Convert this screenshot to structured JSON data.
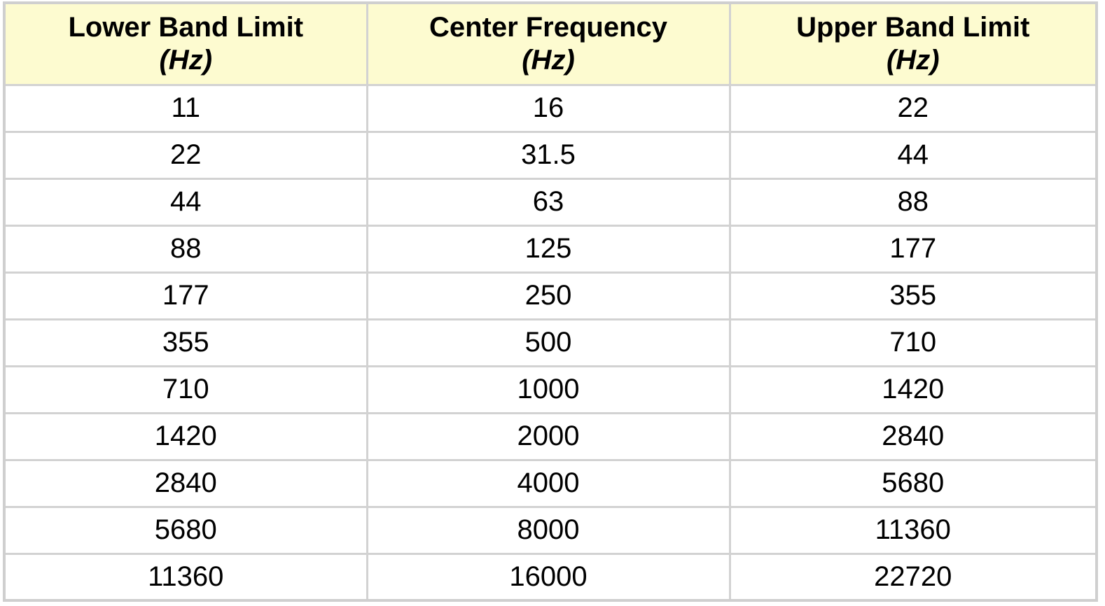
{
  "table": {
    "headers": [
      {
        "name": "Lower Band Limit",
        "unit": "(Hz)"
      },
      {
        "name": "Center Frequency",
        "unit": "(Hz)"
      },
      {
        "name": "Upper Band Limit",
        "unit": "(Hz)"
      }
    ],
    "rows": [
      [
        "11",
        "16",
        "22"
      ],
      [
        "22",
        "31.5",
        "44"
      ],
      [
        "44",
        "63",
        "88"
      ],
      [
        "88",
        "125",
        "177"
      ],
      [
        "177",
        "250",
        "355"
      ],
      [
        "355",
        "500",
        "710"
      ],
      [
        "710",
        "1000",
        "1420"
      ],
      [
        "1420",
        "2000",
        "2840"
      ],
      [
        "2840",
        "4000",
        "5680"
      ],
      [
        "5680",
        "8000",
        "11360"
      ],
      [
        "11360",
        "16000",
        "22720"
      ]
    ],
    "colors": {
      "header_background": "#fdfbd0",
      "grid_lines": "#d2d2d2",
      "cell_background": "#ffffff"
    }
  }
}
